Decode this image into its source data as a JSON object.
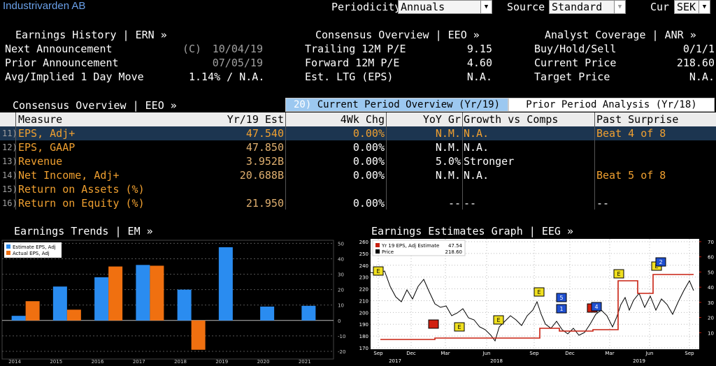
{
  "company": "Industrivarden AB",
  "controls": {
    "periodicity_label": "Periodicity",
    "periodicity_value": "Annuals",
    "source_label": "Source",
    "source_value": "Standard",
    "currency_label": "Cur",
    "currency_value": "SEK"
  },
  "earnings_history": {
    "title": "Earnings History | ERN »",
    "next_label": "Next Announcement",
    "next_flag": "(C)",
    "next_date": "10/04/19",
    "prior_label": "Prior Announcement",
    "prior_date": "07/05/19",
    "move_label": "Avg/Implied 1 Day Move",
    "move_value": "1.14% / N.A."
  },
  "consensus": {
    "title": "Consensus Overview | EEO »",
    "trailing_label": "Trailing 12M P/E",
    "trailing_value": "9.15",
    "forward_label": "Forward 12M P/E",
    "forward_value": "4.60",
    "ltg_label": "Est. LTG (EPS)",
    "ltg_value": "N.A."
  },
  "analyst": {
    "title": "Analyst Coverage | ANR »",
    "bhs_label": "Buy/Hold/Sell",
    "bhs_value": "0/1/1",
    "price_label": "Current Price",
    "price_value": "218.60",
    "target_label": "Target Price",
    "target_value": "N.A."
  },
  "overview": {
    "title": "Consensus Overview | EEO »",
    "tab_current_num": "20)",
    "tab_current": "Current Period Overview (Yr/19)",
    "tab_prior": "Prior Period Analysis (Yr/18)"
  },
  "table": {
    "headers": [
      "Measure",
      "Yr/19 Est",
      "4Wk Chg",
      "YoY Gr",
      "Growth vs Comps",
      "Past Surprise"
    ],
    "rows": [
      {
        "num": "11)",
        "measure": "EPS, Adj+",
        "est": "47.540",
        "chg": "0.00%",
        "yoy": "N.M.",
        "comps": "N.A.",
        "surprise": "Beat 4 of 8"
      },
      {
        "num": "12)",
        "measure": "EPS, GAAP",
        "est": "47.850",
        "chg": "0.00%",
        "yoy": "N.M.",
        "comps": "N.A.",
        "surprise": ""
      },
      {
        "num": "13)",
        "measure": "Revenue",
        "est": "3.952B",
        "chg": "0.00%",
        "yoy": "5.0%",
        "comps": "Stronger",
        "surprise": ""
      },
      {
        "num": "14)",
        "measure": "Net Income, Adj+",
        "est": "20.688B",
        "chg": "0.00%",
        "yoy": "N.M.",
        "comps": "N.A.",
        "surprise": "Beat 5 of 8"
      },
      {
        "num": "15)",
        "measure": "Return on Assets (%)",
        "est": "",
        "chg": "",
        "yoy": "",
        "comps": "",
        "surprise": ""
      },
      {
        "num": "16)",
        "measure": "Return on Equity (%)",
        "est": "21.950",
        "chg": "0.00%",
        "yoy": "--",
        "comps": "--",
        "surprise": "--"
      }
    ]
  },
  "trends": {
    "title": "Earnings Trends | EM »",
    "legend_estimate": "Estimate EPS, Adj",
    "legend_actual": "Actual EPS, Adj",
    "color_estimate": "#2a8cf0",
    "color_actual": "#f07010"
  },
  "estimates_graph": {
    "title": "Earnings Estimates Graph | EEG »",
    "legend_est": "Yr 19 EPS, Adj Estimate",
    "legend_est_value": "47.54",
    "legend_price": "Price",
    "legend_price_value": "218.60",
    "x_months": [
      "Sep",
      "Dec",
      "Mar",
      "Jun",
      "Sep",
      "Dec",
      "Mar",
      "Jun",
      "Sep"
    ],
    "x_years": [
      "2017",
      "2018",
      "2019"
    ],
    "left_ticks": [
      "260",
      "250",
      "240",
      "230",
      "220",
      "210",
      "200",
      "190",
      "180",
      "170"
    ],
    "right_ticks": [
      "70",
      "60",
      "50",
      "40",
      "30",
      "20",
      "10"
    ],
    "marker_e": "E",
    "marker_labels": [
      "1",
      "4",
      "5",
      "2"
    ]
  },
  "chart_data": {
    "type": "bar",
    "categories": [
      "2014",
      "2015",
      "2016",
      "2017",
      "2018",
      "2019",
      "2020",
      "2021"
    ],
    "series": [
      {
        "name": "Estimate EPS, Adj",
        "values": [
          3,
          22,
          28,
          36,
          20,
          47.5,
          9,
          9.5
        ]
      },
      {
        "name": "Actual EPS, Adj",
        "values": [
          12.5,
          7,
          35,
          35.5,
          -19,
          null,
          null,
          null
        ]
      }
    ],
    "ylim": [
      -25,
      52
    ],
    "y_ticks": [
      50,
      40,
      30,
      20,
      10,
      0,
      -10,
      -20
    ],
    "grid": true,
    "legend": "top-left"
  }
}
